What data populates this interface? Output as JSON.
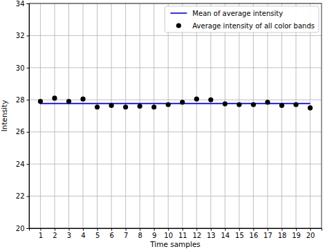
{
  "chart_data": {
    "type": "scatter",
    "x_label": "Time samples",
    "y_label": "Intensity",
    "x": [
      1,
      2,
      3,
      4,
      5,
      6,
      7,
      8,
      9,
      10,
      11,
      12,
      13,
      14,
      15,
      16,
      17,
      18,
      19,
      20
    ],
    "series": [
      {
        "name": "Mean of average intensity",
        "type": "line",
        "color": "#0000cc",
        "line_style": "solid",
        "values": [
          27.77,
          27.77,
          27.77,
          27.77,
          27.77,
          27.77,
          27.77,
          27.77,
          27.77,
          27.77,
          27.77,
          27.77,
          27.77,
          27.77,
          27.77,
          27.77,
          27.77,
          27.77,
          27.77,
          27.77
        ]
      },
      {
        "name": "Average intensity of all color bands",
        "type": "scatter",
        "color": "#000000",
        "marker": "circle",
        "values": [
          27.9,
          28.1,
          27.9,
          28.05,
          27.55,
          27.65,
          27.55,
          27.6,
          27.55,
          27.7,
          27.85,
          28.05,
          28.0,
          27.75,
          27.7,
          27.7,
          27.85,
          27.65,
          27.7,
          27.5
        ]
      }
    ],
    "xlim": [
      0.2,
      20.8
    ],
    "xticks": [
      1,
      2,
      3,
      4,
      5,
      6,
      7,
      8,
      9,
      10,
      11,
      12,
      13,
      14,
      15,
      16,
      17,
      18,
      19,
      20
    ],
    "ylim": [
      20,
      34
    ],
    "yticks": [
      20,
      22,
      24,
      26,
      28,
      30,
      32,
      34
    ],
    "grid": true,
    "legend": "upper right"
  }
}
